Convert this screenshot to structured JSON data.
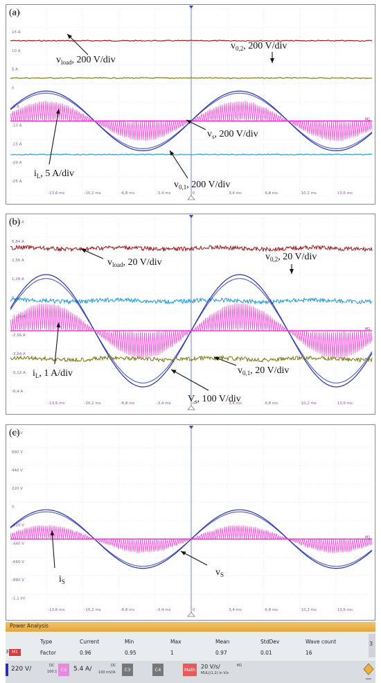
{
  "chart_data": [
    {
      "type": "line",
      "panel_label": "(a)",
      "x_ticks": [
        "-17 ms",
        "-13,6 ms",
        "-10,2 ms",
        "-6,8 ms",
        "-3,4 ms",
        "0",
        "3,4 ms",
        "6,8 ms",
        "10,2 ms",
        "13,6 ms",
        "17 ms"
      ],
      "y_ticks": [
        "20 A",
        "15 A",
        "10 A",
        "5 A",
        "0",
        "-5 A",
        "-10 A",
        "-15 A",
        "-20 A",
        "-25 A"
      ],
      "series": [
        {
          "name": "vload, 200 V/div",
          "color": "#a01818",
          "kind": "flat",
          "level": 8.3
        },
        {
          "name": "v0,2, 200 V/div",
          "color": "#7a7a14",
          "kind": "flat",
          "level": 6.3
        },
        {
          "name": "vs, 200 V/div",
          "color": "#2430b8",
          "kind": "sine",
          "offset": 4.0,
          "amp": 1.6
        },
        {
          "name": "iL, 5 A/div",
          "color": "#ff2ad8",
          "kind": "chopped",
          "offset": 4.0,
          "amp": 1.05
        },
        {
          "name": "v0,1, 200 V/div",
          "color": "#1e9be0",
          "kind": "flat",
          "level": 2.2
        }
      ],
      "annotations": [
        {
          "base": "v",
          "sub": "load",
          "rest": ", 200 V/div"
        },
        {
          "base": "v",
          "sub": "0,2",
          "rest": ", 200 V/div"
        },
        {
          "base": "v",
          "sub": "s",
          "rest": ", 200 V/div"
        },
        {
          "base": "i",
          "sub": "L",
          "rest": ", 5 A/div"
        },
        {
          "base": "v",
          "sub": "0,1",
          "rest": ", 200 V/div"
        }
      ],
      "marker": "M1"
    },
    {
      "type": "line",
      "panel_label": "(b)",
      "x_ticks": [
        "-17 ms",
        "-13,6 ms",
        "-10,2 ms",
        "-6,8 ms",
        "-3,4 ms",
        "0",
        "3,4 ms",
        "6,8 ms",
        "10,2 ms",
        "13,6 ms",
        "17 ms"
      ],
      "y_ticks": [
        "6,32 A",
        "5,84 A",
        "2,56 A",
        "1,28 A",
        "0",
        "-1,28 A",
        "-2,56 A",
        "-3,84 A",
        "-5,12 A",
        "-6,4 A"
      ],
      "series": [
        {
          "name": "vload, 20 V/div",
          "color": "#a01818",
          "kind": "noisy",
          "level": 8.4
        },
        {
          "name": "v0,2, 20 V/div",
          "color": "#1e9be0",
          "kind": "noisy",
          "level": 5.6
        },
        {
          "name": "Vs, 100 V/div",
          "color": "#2430b8",
          "kind": "sine",
          "offset": 4.0,
          "amp": 3.0
        },
        {
          "name": "iL, 1 A/div",
          "color": "#ff2ad8",
          "kind": "chopped",
          "offset": 4.0,
          "amp": 1.45
        },
        {
          "name": "v0,1, 20 V/div",
          "color": "#7a7a14",
          "kind": "noisy",
          "level": 2.5
        }
      ],
      "annotations": [
        {
          "base": "v",
          "sub": "load",
          "rest": ", 20 V/div"
        },
        {
          "base": "v",
          "sub": "0,2",
          "rest": ", 20 V/div"
        },
        {
          "base": "V",
          "sub": "s",
          "rest": ", 100 V/div"
        },
        {
          "base": "i",
          "sub": "L",
          "rest": ", 1 A/div"
        },
        {
          "base": "v",
          "sub": "0,1",
          "rest": ", 20 V/div"
        }
      ],
      "marker": "M1"
    },
    {
      "type": "line",
      "panel_label": "(c)",
      "x_ticks": [
        "-17 ms",
        "-13,6 ms",
        "-10,2 ms",
        "-6,8 ms",
        "-3,4 ms",
        "0",
        "3,4 ms",
        "6,8 ms",
        "10,2 ms",
        "13,6 ms",
        "17 ms"
      ],
      "y_ticks": [
        "880 V",
        "660 V",
        "440 V",
        "220 V",
        "0",
        "-220 V",
        "-440 V",
        "-660 V",
        "-880 V",
        "-1,1 kV"
      ],
      "series": [
        {
          "name": "vs",
          "color": "#2430b8",
          "kind": "sine",
          "offset": 4.0,
          "amp": 1.6
        },
        {
          "name": "is",
          "color": "#ff2ad8",
          "kind": "chopped",
          "offset": 4.0,
          "amp": 0.75
        }
      ],
      "annotations": [
        {
          "base": "i",
          "sub": "S",
          "rest": ""
        },
        {
          "base": "v",
          "sub": "S",
          "rest": ""
        }
      ],
      "marker": "M1"
    }
  ],
  "status_panel": {
    "title": "Power Analysis",
    "headers": [
      "Type",
      "Current",
      "Min",
      "Max",
      "Mean",
      "StdDev",
      "Wave count"
    ],
    "row_prefix": "3:",
    "row_badge": "M1",
    "values": [
      "Factor",
      "0.96",
      "0.95",
      "1",
      "0.97",
      "0.01",
      "16"
    ],
    "scroll_glyph": "3",
    "channels": {
      "c1_value": "220 V/",
      "c1_sub_top": "DC",
      "c1_sub_bot": "100:1",
      "c2_tag": "C2",
      "c2_value": "5.4 A/",
      "c2_sub_top": "DC",
      "c2_sub_bot": "100 mV/A",
      "c3_tag": "C3",
      "c4_tag": "C4",
      "math_tag": "Math",
      "math_value": "20 V/s/",
      "math_sub": "MUL((1,2) In V/s",
      "math_marker": "M1"
    },
    "colors": {
      "c1": "#2430b8",
      "c2": "#e888e0",
      "c3": "#777777",
      "c4": "#777777",
      "math": "#e85a5a"
    }
  }
}
